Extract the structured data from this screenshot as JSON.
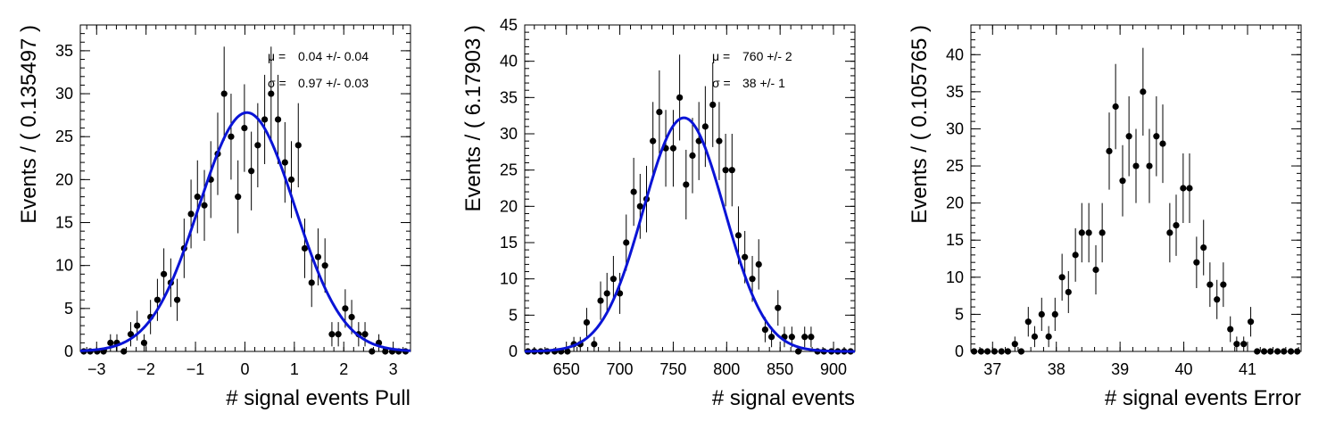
{
  "colors": {
    "fit": "#0a14d6",
    "points": "#000000",
    "background": "#ffffff"
  },
  "chart_data": [
    {
      "type": "scatter",
      "xlabel": "# signal events Pull",
      "ylabel": "Events / ( 0.135497 )",
      "xlim": [
        -3.33,
        3.35
      ],
      "ylim": [
        0,
        38
      ],
      "xticks": [
        -3,
        -2,
        -1,
        0,
        1,
        2,
        3
      ],
      "xtick_labels": [
        "−3",
        "−2",
        "−1",
        "0",
        "1",
        "2",
        "3"
      ],
      "yticks": [
        0,
        5,
        10,
        15,
        20,
        25,
        30,
        35
      ],
      "xminor": 0.2,
      "yminor": 1,
      "stats": [
        {
          "label": "μ =",
          "value": "0.04 +/- 0.04"
        },
        {
          "label": "σ =",
          "value": "0.97 +/- 0.03"
        }
      ],
      "fit": {
        "function": "gaussian",
        "mean": 0.04,
        "sigma": 0.97,
        "amplitude": 27.8
      },
      "points": [
        {
          "x": -3.26,
          "y": 0
        },
        {
          "x": -3.13,
          "y": 0
        },
        {
          "x": -2.99,
          "y": 0
        },
        {
          "x": -2.86,
          "y": 0
        },
        {
          "x": -2.72,
          "y": 1
        },
        {
          "x": -2.59,
          "y": 1
        },
        {
          "x": -2.45,
          "y": 0
        },
        {
          "x": -2.31,
          "y": 2
        },
        {
          "x": -2.18,
          "y": 3
        },
        {
          "x": -2.04,
          "y": 1
        },
        {
          "x": -1.91,
          "y": 4
        },
        {
          "x": -1.77,
          "y": 6
        },
        {
          "x": -1.64,
          "y": 9
        },
        {
          "x": -1.5,
          "y": 8
        },
        {
          "x": -1.37,
          "y": 6
        },
        {
          "x": -1.23,
          "y": 12
        },
        {
          "x": -1.09,
          "y": 16
        },
        {
          "x": -0.96,
          "y": 18
        },
        {
          "x": -0.82,
          "y": 17
        },
        {
          "x": -0.69,
          "y": 20
        },
        {
          "x": -0.55,
          "y": 23
        },
        {
          "x": -0.42,
          "y": 30
        },
        {
          "x": -0.28,
          "y": 25
        },
        {
          "x": -0.14,
          "y": 18
        },
        {
          "x": -0.01,
          "y": 26
        },
        {
          "x": 0.13,
          "y": 21
        },
        {
          "x": 0.26,
          "y": 24
        },
        {
          "x": 0.4,
          "y": 27
        },
        {
          "x": 0.53,
          "y": 30
        },
        {
          "x": 0.67,
          "y": 27
        },
        {
          "x": 0.81,
          "y": 22
        },
        {
          "x": 0.94,
          "y": 20
        },
        {
          "x": 1.08,
          "y": 24
        },
        {
          "x": 1.21,
          "y": 12
        },
        {
          "x": 1.35,
          "y": 8
        },
        {
          "x": 1.48,
          "y": 11
        },
        {
          "x": 1.62,
          "y": 10
        },
        {
          "x": 1.76,
          "y": 2
        },
        {
          "x": 1.89,
          "y": 2
        },
        {
          "x": 2.03,
          "y": 5
        },
        {
          "x": 2.16,
          "y": 4
        },
        {
          "x": 2.3,
          "y": 2
        },
        {
          "x": 2.43,
          "y": 2
        },
        {
          "x": 2.57,
          "y": 0
        },
        {
          "x": 2.71,
          "y": 1
        },
        {
          "x": 2.84,
          "y": 0
        },
        {
          "x": 2.98,
          "y": 0
        },
        {
          "x": 3.11,
          "y": 0
        },
        {
          "x": 3.25,
          "y": 0
        }
      ]
    },
    {
      "type": "scatter",
      "xlabel": "# signal events",
      "ylabel": "Events / ( 6.17903 )",
      "xlim": [
        611,
        920
      ],
      "ylim": [
        0,
        45
      ],
      "xticks": [
        650,
        700,
        750,
        800,
        850,
        900
      ],
      "xtick_labels": [
        "650",
        "700",
        "750",
        "800",
        "850",
        "900"
      ],
      "yticks": [
        0,
        5,
        10,
        15,
        20,
        25,
        30,
        35,
        40,
        45
      ],
      "xminor": 10,
      "yminor": 1,
      "stats": [
        {
          "label": "μ =",
          "value": "760 +/- 2"
        },
        {
          "label": "σ =",
          "value": "38 +/- 1"
        }
      ],
      "fit": {
        "function": "gaussian",
        "mean": 760,
        "sigma": 38,
        "amplitude": 32.2
      },
      "points": [
        {
          "x": 614,
          "y": 0
        },
        {
          "x": 620,
          "y": 0
        },
        {
          "x": 626,
          "y": 0
        },
        {
          "x": 632,
          "y": 0
        },
        {
          "x": 639,
          "y": 0
        },
        {
          "x": 645,
          "y": 0
        },
        {
          "x": 651,
          "y": 0
        },
        {
          "x": 657,
          "y": 1
        },
        {
          "x": 663,
          "y": 1
        },
        {
          "x": 669,
          "y": 4
        },
        {
          "x": 676,
          "y": 1
        },
        {
          "x": 682,
          "y": 7
        },
        {
          "x": 688,
          "y": 8
        },
        {
          "x": 694,
          "y": 10
        },
        {
          "x": 700,
          "y": 8
        },
        {
          "x": 706,
          "y": 15
        },
        {
          "x": 713,
          "y": 22
        },
        {
          "x": 719,
          "y": 20
        },
        {
          "x": 725,
          "y": 21
        },
        {
          "x": 731,
          "y": 29
        },
        {
          "x": 737,
          "y": 33
        },
        {
          "x": 743,
          "y": 28
        },
        {
          "x": 750,
          "y": 28
        },
        {
          "x": 756,
          "y": 35
        },
        {
          "x": 762,
          "y": 23
        },
        {
          "x": 768,
          "y": 27
        },
        {
          "x": 774,
          "y": 29
        },
        {
          "x": 780,
          "y": 31
        },
        {
          "x": 787,
          "y": 34
        },
        {
          "x": 793,
          "y": 29
        },
        {
          "x": 799,
          "y": 25
        },
        {
          "x": 805,
          "y": 25
        },
        {
          "x": 811,
          "y": 16
        },
        {
          "x": 817,
          "y": 13
        },
        {
          "x": 824,
          "y": 10
        },
        {
          "x": 830,
          "y": 12
        },
        {
          "x": 836,
          "y": 3
        },
        {
          "x": 842,
          "y": 2
        },
        {
          "x": 848,
          "y": 6
        },
        {
          "x": 854,
          "y": 2
        },
        {
          "x": 861,
          "y": 2
        },
        {
          "x": 867,
          "y": 0
        },
        {
          "x": 873,
          "y": 2
        },
        {
          "x": 879,
          "y": 2
        },
        {
          "x": 885,
          "y": 0
        },
        {
          "x": 891,
          "y": 0
        },
        {
          "x": 898,
          "y": 0
        },
        {
          "x": 904,
          "y": 0
        },
        {
          "x": 910,
          "y": 0
        },
        {
          "x": 916,
          "y": 0
        }
      ]
    },
    {
      "type": "scatter",
      "xlabel": "# signal events Error",
      "ylabel": "Events / ( 0.105765 )",
      "xlim": [
        36.66,
        41.84
      ],
      "ylim": [
        0,
        44
      ],
      "xticks": [
        37,
        38,
        39,
        40,
        41
      ],
      "xtick_labels": [
        "37",
        "38",
        "39",
        "40",
        "41"
      ],
      "yticks": [
        0,
        5,
        10,
        15,
        20,
        25,
        30,
        35,
        40
      ],
      "xminor": 0.2,
      "yminor": 1,
      "stats": [],
      "fit": null,
      "points": [
        {
          "x": 36.71,
          "y": 0
        },
        {
          "x": 36.82,
          "y": 0
        },
        {
          "x": 36.92,
          "y": 0
        },
        {
          "x": 37.03,
          "y": 0
        },
        {
          "x": 37.14,
          "y": 0
        },
        {
          "x": 37.24,
          "y": 0
        },
        {
          "x": 37.35,
          "y": 1
        },
        {
          "x": 37.45,
          "y": 0
        },
        {
          "x": 37.56,
          "y": 4
        },
        {
          "x": 37.66,
          "y": 2
        },
        {
          "x": 37.77,
          "y": 5
        },
        {
          "x": 37.88,
          "y": 2
        },
        {
          "x": 37.98,
          "y": 5
        },
        {
          "x": 38.09,
          "y": 10
        },
        {
          "x": 38.19,
          "y": 8
        },
        {
          "x": 38.3,
          "y": 13
        },
        {
          "x": 38.4,
          "y": 16
        },
        {
          "x": 38.51,
          "y": 16
        },
        {
          "x": 38.62,
          "y": 11
        },
        {
          "x": 38.72,
          "y": 16
        },
        {
          "x": 38.83,
          "y": 27
        },
        {
          "x": 38.93,
          "y": 33
        },
        {
          "x": 39.04,
          "y": 23
        },
        {
          "x": 39.14,
          "y": 29
        },
        {
          "x": 39.25,
          "y": 25
        },
        {
          "x": 39.36,
          "y": 35
        },
        {
          "x": 39.46,
          "y": 25
        },
        {
          "x": 39.57,
          "y": 29
        },
        {
          "x": 39.67,
          "y": 28
        },
        {
          "x": 39.78,
          "y": 16
        },
        {
          "x": 39.88,
          "y": 17
        },
        {
          "x": 39.99,
          "y": 22
        },
        {
          "x": 40.09,
          "y": 22
        },
        {
          "x": 40.2,
          "y": 12
        },
        {
          "x": 40.31,
          "y": 14
        },
        {
          "x": 40.41,
          "y": 9
        },
        {
          "x": 40.52,
          "y": 7
        },
        {
          "x": 40.62,
          "y": 9
        },
        {
          "x": 40.73,
          "y": 3
        },
        {
          "x": 40.83,
          "y": 1
        },
        {
          "x": 40.94,
          "y": 1
        },
        {
          "x": 41.05,
          "y": 4
        },
        {
          "x": 41.15,
          "y": 0
        },
        {
          "x": 41.26,
          "y": 0
        },
        {
          "x": 41.36,
          "y": 0
        },
        {
          "x": 41.47,
          "y": 0
        },
        {
          "x": 41.57,
          "y": 0
        },
        {
          "x": 41.68,
          "y": 0
        },
        {
          "x": 41.78,
          "y": 0
        }
      ]
    }
  ]
}
